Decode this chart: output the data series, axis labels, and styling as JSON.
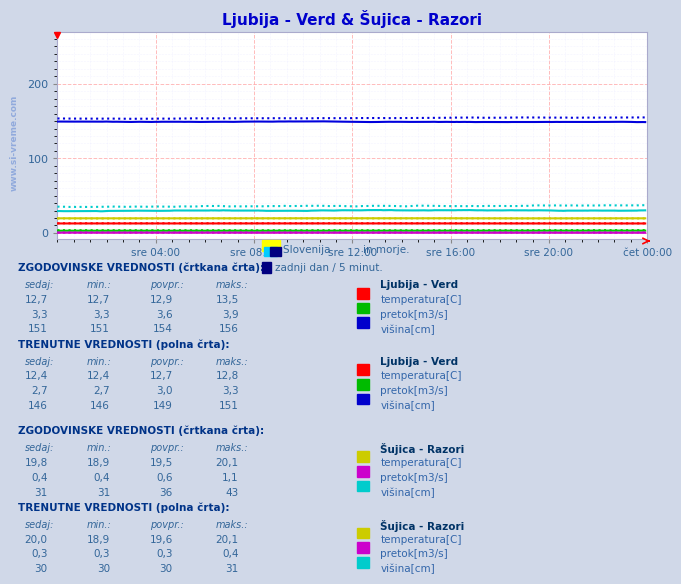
{
  "title": "Ljubija - Verd & Šujica - Razori",
  "title_color": "#0000cc",
  "bg_color": "#d0d8e8",
  "plot_bg_color": "#ffffff",
  "grid_color_major": "#ffaaaa",
  "grid_color_minor": "#ddddff",
  "xlabel_times": [
    "sre 04:00",
    "sre 08:00",
    "sre 12:00",
    "sre 16:00",
    "sre 20:00",
    "čet 00:00"
  ],
  "ymax": 270,
  "ymin": -8,
  "yticks": [
    0,
    100,
    200
  ],
  "watermark_color": "#3366cc",
  "series": [
    {
      "color": "#0000dd",
      "style": "dotted",
      "lw": 1.5,
      "mean": 154,
      "noise": 2,
      "seed": 1
    },
    {
      "color": "#0000dd",
      "style": "solid",
      "lw": 1.5,
      "mean": 149,
      "noise": 2,
      "seed": 7
    },
    {
      "color": "#ff0000",
      "style": "dotted",
      "lw": 1.5,
      "mean": 12.9,
      "noise": 0.3,
      "seed": 2
    },
    {
      "color": "#ff0000",
      "style": "solid",
      "lw": 1.5,
      "mean": 12.7,
      "noise": 0.2,
      "seed": 8
    },
    {
      "color": "#00cc00",
      "style": "dotted",
      "lw": 1.5,
      "mean": 3.6,
      "noise": 0.2,
      "seed": 3
    },
    {
      "color": "#00cc00",
      "style": "solid",
      "lw": 1.5,
      "mean": 3.0,
      "noise": 0.2,
      "seed": 9
    },
    {
      "color": "#00cccc",
      "style": "dotted",
      "lw": 1.5,
      "mean": 36,
      "noise": 4,
      "seed": 4
    },
    {
      "color": "#00cccc",
      "style": "solid",
      "lw": 1.5,
      "mean": 30,
      "noise": 3,
      "seed": 10
    },
    {
      "color": "#cccc00",
      "style": "dotted",
      "lw": 1.5,
      "mean": 19.5,
      "noise": 0.5,
      "seed": 5
    },
    {
      "color": "#cccc00",
      "style": "solid",
      "lw": 1.5,
      "mean": 19.6,
      "noise": 0.4,
      "seed": 11
    },
    {
      "color": "#cc00cc",
      "style": "dotted",
      "lw": 1.5,
      "mean": 0.6,
      "noise": 0.1,
      "seed": 6
    },
    {
      "color": "#cc00cc",
      "style": "solid",
      "lw": 1.5,
      "mean": 0.3,
      "noise": 0.05,
      "seed": 12
    }
  ],
  "legend_text1": "Slovenija          in morje.",
  "legend_text2": "zadnji dan / 5 minut.",
  "table_data_color": "#336699",
  "table_label_color": "#3366aa",
  "section_header_color": "#003388",
  "station_color": "#003366",
  "table_sections": [
    {
      "header": "ZGODOVINSKE VREDNOSTI (črtkana črta):",
      "station": "Ljubija - Verd",
      "rows": [
        {
          "label": "temperatura[C]",
          "color": "#ff0000",
          "sedaj": "12,7",
          "min": "12,7",
          "povpr": "12,9",
          "maks": "13,5"
        },
        {
          "label": "pretok[m3/s]",
          "color": "#00bb00",
          "sedaj": "3,3",
          "min": "3,3",
          "povpr": "3,6",
          "maks": "3,9"
        },
        {
          "label": "višina[cm]",
          "color": "#0000cc",
          "sedaj": "151",
          "min": "151",
          "povpr": "154",
          "maks": "156"
        }
      ]
    },
    {
      "header": "TRENUTNE VREDNOSTI (polna črta):",
      "station": "Ljubija - Verd",
      "rows": [
        {
          "label": "temperatura[C]",
          "color": "#ff0000",
          "sedaj": "12,4",
          "min": "12,4",
          "povpr": "12,7",
          "maks": "12,8"
        },
        {
          "label": "pretok[m3/s]",
          "color": "#00bb00",
          "sedaj": "2,7",
          "min": "2,7",
          "povpr": "3,0",
          "maks": "3,3"
        },
        {
          "label": "višina[cm]",
          "color": "#0000cc",
          "sedaj": "146",
          "min": "146",
          "povpr": "149",
          "maks": "151"
        }
      ]
    },
    {
      "header": "ZGODOVINSKE VREDNOSTI (črtkana črta):",
      "station": "Šujica - Razori",
      "rows": [
        {
          "label": "temperatura[C]",
          "color": "#cccc00",
          "sedaj": "19,8",
          "min": "18,9",
          "povpr": "19,5",
          "maks": "20,1"
        },
        {
          "label": "pretok[m3/s]",
          "color": "#cc00cc",
          "sedaj": "0,4",
          "min": "0,4",
          "povpr": "0,6",
          "maks": "1,1"
        },
        {
          "label": "višina[cm]",
          "color": "#00cccc",
          "sedaj": "31",
          "min": "31",
          "povpr": "36",
          "maks": "43"
        }
      ]
    },
    {
      "header": "TRENUTNE VREDNOSTI (polna črta):",
      "station": "Šujica - Razori",
      "rows": [
        {
          "label": "temperatura[C]",
          "color": "#cccc00",
          "sedaj": "20,0",
          "min": "18,9",
          "povpr": "19,6",
          "maks": "20,1"
        },
        {
          "label": "pretok[m3/s]",
          "color": "#cc00cc",
          "sedaj": "0,3",
          "min": "0,3",
          "povpr": "0,3",
          "maks": "0,4"
        },
        {
          "label": "višina[cm]",
          "color": "#00cccc",
          "sedaj": "30",
          "min": "30",
          "povpr": "30",
          "maks": "31"
        }
      ]
    }
  ]
}
